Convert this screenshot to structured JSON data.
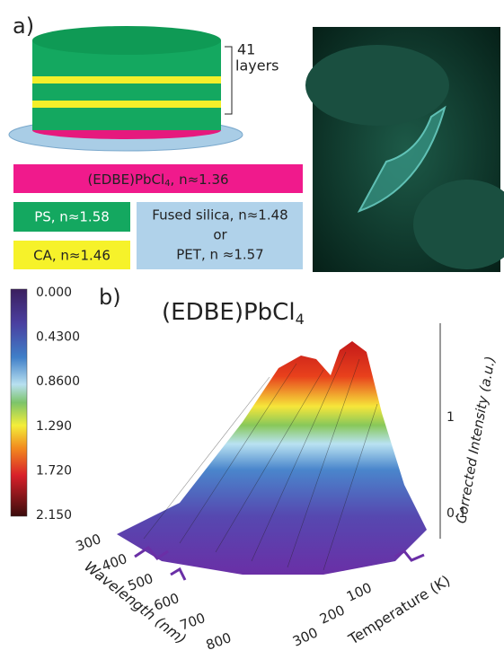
{
  "panel_a": {
    "label": "a)",
    "stack_count": "41",
    "stack_unit": "layers",
    "legend": {
      "perovskite": {
        "base": "(EDBE)PbCl",
        "sub": "4",
        "rest": ", n≈1.36"
      },
      "ps": "PS, n≈1.58",
      "ca": "CA, n≈1.46",
      "substrate": [
        "Fused silica, n≈1.48",
        "or",
        "PET, n ≈1.57"
      ]
    }
  },
  "panel_b": {
    "label": "b)",
    "title": {
      "base": "(EDBE)PbCl",
      "sub": "4"
    },
    "colorbar": [
      "0.000",
      "0.4300",
      "0.8600",
      "1.290",
      "1.720",
      "2.150"
    ],
    "z_axis": {
      "label": "Corrected Intensity (a.u.)",
      "ticks": [
        "1",
        "0.1"
      ]
    },
    "wavelength_axis": {
      "label": "Wavelength (nm)",
      "ticks": [
        "300",
        "400",
        "500",
        "600",
        "700",
        "800"
      ]
    },
    "temperature_axis": {
      "label": "Temperature (K)",
      "ticks": [
        "100",
        "200",
        "300"
      ]
    }
  }
}
